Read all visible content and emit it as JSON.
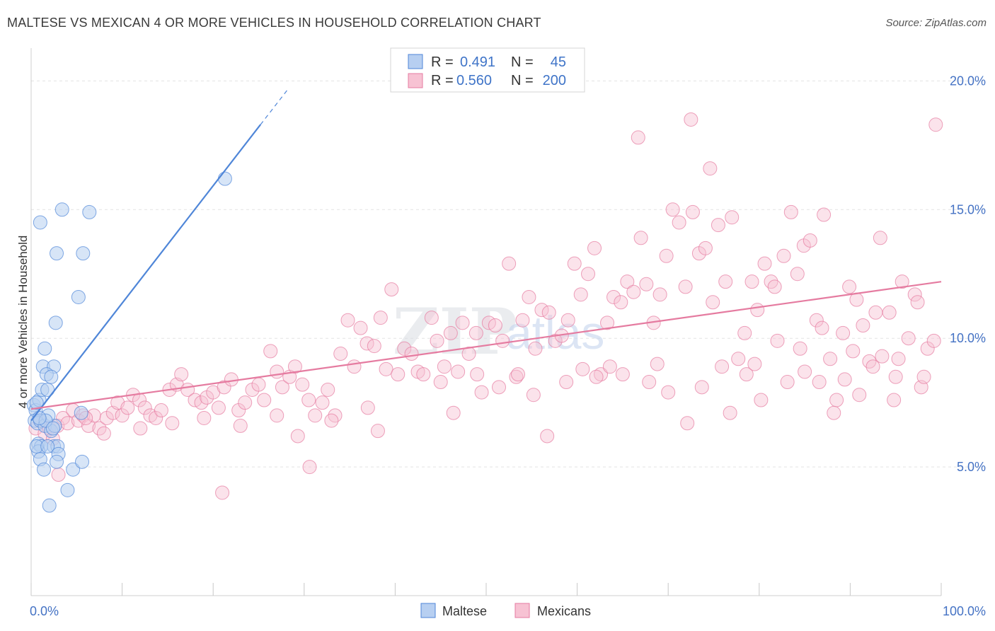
{
  "header": {
    "title": "MALTESE VS MEXICAN 4 OR MORE VEHICLES IN HOUSEHOLD CORRELATION CHART",
    "source": "Source: ZipAtlas.com"
  },
  "watermark": {
    "zip": "ZIP",
    "atlas": "atlas"
  },
  "legend": {
    "r_label": "R =",
    "n_label": "N =",
    "items": [
      {
        "r": "0.491",
        "n": "45",
        "color": "#4f86d8"
      },
      {
        "r": "0.560",
        "n": "200",
        "color": "#e57ba0"
      }
    ]
  },
  "chart_data": {
    "type": "scatter",
    "title": "MALTESE VS MEXICAN 4 OR MORE VEHICLES IN HOUSEHOLD CORRELATION CHART",
    "xlabel": "",
    "ylabel": "4 or more Vehicles in Household",
    "xlim": [
      0,
      100
    ],
    "ylim": [
      0,
      21
    ],
    "x_tick_labels": [
      "0.0%",
      "100.0%"
    ],
    "y_ticks": [
      5,
      10,
      15,
      20
    ],
    "y_tick_labels": [
      "5.0%",
      "10.0%",
      "15.0%",
      "20.0%"
    ],
    "grid": true,
    "legend_position": "top-center",
    "series": [
      {
        "name": "Maltese",
        "color": "#4f86d8",
        "trend": {
          "x0": 0,
          "y0": 6.8,
          "x1": 25.2,
          "y1": 18.3,
          "dash_to_x": 28.3
        },
        "points": [
          [
            0.3,
            7.4
          ],
          [
            0.5,
            7.2
          ],
          [
            0.4,
            6.8
          ],
          [
            0.7,
            6.7
          ],
          [
            0.9,
            7.6
          ],
          [
            0.6,
            7.5
          ],
          [
            1.2,
            8.0
          ],
          [
            1.8,
            8.0
          ],
          [
            1.0,
            6.8
          ],
          [
            1.5,
            6.6
          ],
          [
            2.2,
            6.4
          ],
          [
            2.6,
            6.6
          ],
          [
            1.9,
            7.0
          ],
          [
            0.8,
            5.9
          ],
          [
            1.1,
            5.8
          ],
          [
            2.5,
            5.8
          ],
          [
            2.9,
            5.8
          ],
          [
            3.0,
            5.5
          ],
          [
            0.8,
            5.6
          ],
          [
            1.0,
            5.3
          ],
          [
            1.4,
            4.9
          ],
          [
            2.8,
            5.2
          ],
          [
            4.6,
            4.9
          ],
          [
            5.6,
            5.2
          ],
          [
            4.0,
            4.1
          ],
          [
            2.0,
            3.5
          ],
          [
            1.3,
            8.9
          ],
          [
            2.5,
            8.9
          ],
          [
            1.7,
            8.6
          ],
          [
            2.2,
            8.5
          ],
          [
            1.5,
            9.6
          ],
          [
            2.7,
            10.6
          ],
          [
            5.2,
            11.6
          ],
          [
            2.8,
            13.3
          ],
          [
            5.7,
            13.3
          ],
          [
            1.0,
            14.5
          ],
          [
            3.4,
            15.0
          ],
          [
            6.4,
            14.9
          ],
          [
            21.3,
            16.2
          ],
          [
            5.5,
            7.1
          ],
          [
            0.6,
            5.8
          ],
          [
            1.6,
            6.8
          ],
          [
            2.4,
            6.5
          ],
          [
            0.9,
            6.9
          ],
          [
            1.8,
            5.8
          ]
        ]
      },
      {
        "name": "Mexicans",
        "color": "#e57ba0",
        "trend": {
          "x0": 0,
          "y0": 7.25,
          "x1": 100,
          "y1": 12.2
        },
        "points": [
          [
            0.5,
            6.5
          ],
          [
            1.0,
            6.8
          ],
          [
            1.5,
            6.3
          ],
          [
            2.0,
            6.5
          ],
          [
            2.4,
            6.1
          ],
          [
            2.9,
            6.6
          ],
          [
            3.5,
            6.9
          ],
          [
            4.0,
            6.7
          ],
          [
            4.6,
            7.2
          ],
          [
            5.2,
            6.8
          ],
          [
            5.7,
            7.0
          ],
          [
            6.3,
            6.6
          ],
          [
            6.9,
            7.0
          ],
          [
            7.5,
            6.5
          ],
          [
            8.3,
            6.9
          ],
          [
            9.0,
            7.1
          ],
          [
            9.5,
            7.5
          ],
          [
            10.0,
            7.0
          ],
          [
            10.6,
            7.3
          ],
          [
            11.2,
            7.8
          ],
          [
            11.9,
            7.6
          ],
          [
            12.5,
            7.3
          ],
          [
            13.1,
            7.0
          ],
          [
            13.7,
            6.9
          ],
          [
            14.3,
            7.2
          ],
          [
            15.2,
            8.0
          ],
          [
            16.0,
            8.2
          ],
          [
            16.5,
            8.6
          ],
          [
            17.2,
            8.0
          ],
          [
            18.0,
            7.6
          ],
          [
            18.7,
            7.5
          ],
          [
            19.3,
            7.7
          ],
          [
            20.0,
            7.9
          ],
          [
            20.6,
            7.3
          ],
          [
            21.2,
            8.1
          ],
          [
            22.0,
            8.4
          ],
          [
            22.8,
            7.2
          ],
          [
            23.5,
            7.5
          ],
          [
            24.3,
            8.0
          ],
          [
            25.0,
            8.2
          ],
          [
            25.6,
            7.6
          ],
          [
            26.3,
            9.5
          ],
          [
            27.0,
            8.7
          ],
          [
            27.6,
            8.1
          ],
          [
            28.4,
            8.5
          ],
          [
            29.0,
            8.9
          ],
          [
            29.8,
            8.2
          ],
          [
            30.5,
            7.6
          ],
          [
            31.2,
            7.0
          ],
          [
            32.0,
            7.5
          ],
          [
            32.6,
            8.0
          ],
          [
            33.4,
            7.0
          ],
          [
            34.0,
            9.4
          ],
          [
            34.8,
            10.7
          ],
          [
            35.5,
            8.9
          ],
          [
            36.2,
            10.4
          ],
          [
            36.9,
            9.8
          ],
          [
            37.7,
            9.7
          ],
          [
            38.4,
            10.8
          ],
          [
            39.0,
            8.8
          ],
          [
            39.6,
            11.9
          ],
          [
            40.3,
            8.6
          ],
          [
            41.0,
            9.6
          ],
          [
            41.8,
            9.4
          ],
          [
            42.5,
            8.7
          ],
          [
            43.1,
            8.6
          ],
          [
            44.0,
            10.8
          ],
          [
            44.6,
            9.9
          ],
          [
            45.4,
            8.9
          ],
          [
            46.1,
            10.2
          ],
          [
            46.9,
            8.7
          ],
          [
            47.4,
            10.6
          ],
          [
            48.1,
            9.4
          ],
          [
            48.9,
            10.2
          ],
          [
            49.5,
            7.9
          ],
          [
            50.3,
            10.6
          ],
          [
            51.0,
            10.5
          ],
          [
            51.8,
            9.9
          ],
          [
            52.5,
            12.9
          ],
          [
            53.3,
            8.5
          ],
          [
            54.0,
            10.7
          ],
          [
            54.7,
            11.6
          ],
          [
            55.4,
            9.6
          ],
          [
            56.1,
            11.1
          ],
          [
            56.9,
            11.0
          ],
          [
            57.6,
            9.9
          ],
          [
            58.3,
            10.1
          ],
          [
            59.0,
            10.7
          ],
          [
            59.7,
            12.9
          ],
          [
            60.4,
            11.7
          ],
          [
            61.2,
            12.5
          ],
          [
            61.9,
            13.5
          ],
          [
            62.6,
            8.6
          ],
          [
            63.3,
            10.6
          ],
          [
            64.0,
            11.6
          ],
          [
            64.8,
            11.4
          ],
          [
            65.5,
            12.2
          ],
          [
            66.2,
            11.8
          ],
          [
            67.0,
            13.9
          ],
          [
            67.6,
            12.1
          ],
          [
            68.4,
            10.6
          ],
          [
            69.1,
            11.7
          ],
          [
            69.8,
            13.2
          ],
          [
            70.5,
            15.0
          ],
          [
            71.2,
            14.5
          ],
          [
            71.9,
            12.0
          ],
          [
            72.7,
            14.9
          ],
          [
            73.4,
            13.3
          ],
          [
            74.1,
            13.5
          ],
          [
            74.9,
            11.4
          ],
          [
            75.5,
            14.4
          ],
          [
            76.3,
            12.2
          ],
          [
            77.0,
            14.7
          ],
          [
            77.7,
            9.2
          ],
          [
            78.4,
            10.2
          ],
          [
            79.2,
            12.2
          ],
          [
            79.8,
            11.1
          ],
          [
            80.6,
            12.9
          ],
          [
            81.3,
            12.2
          ],
          [
            82.0,
            9.9
          ],
          [
            82.7,
            13.2
          ],
          [
            83.5,
            14.9
          ],
          [
            84.2,
            12.5
          ],
          [
            84.9,
            13.6
          ],
          [
            85.6,
            13.8
          ],
          [
            86.3,
            10.7
          ],
          [
            87.1,
            14.8
          ],
          [
            87.8,
            9.2
          ],
          [
            88.5,
            7.6
          ],
          [
            89.2,
            10.2
          ],
          [
            89.9,
            12.0
          ],
          [
            90.7,
            11.5
          ],
          [
            91.4,
            10.5
          ],
          [
            92.1,
            9.1
          ],
          [
            92.8,
            11.0
          ],
          [
            93.5,
            9.3
          ],
          [
            94.3,
            11.0
          ],
          [
            95.0,
            8.5
          ],
          [
            95.7,
            12.2
          ],
          [
            96.4,
            10.0
          ],
          [
            97.1,
            11.7
          ],
          [
            97.8,
            8.1
          ],
          [
            98.5,
            9.6
          ],
          [
            99.2,
            9.9
          ],
          [
            66.7,
            17.8
          ],
          [
            72.5,
            18.5
          ],
          [
            74.6,
            16.6
          ],
          [
            99.4,
            18.3
          ],
          [
            81.7,
            12.0
          ],
          [
            86.9,
            10.4
          ],
          [
            93.3,
            13.9
          ],
          [
            97.4,
            11.4
          ],
          [
            76.8,
            7.1
          ],
          [
            85.0,
            8.7
          ],
          [
            89.4,
            8.4
          ],
          [
            91.0,
            7.8
          ],
          [
            94.8,
            7.6
          ],
          [
            72.1,
            6.7
          ],
          [
            56.7,
            6.2
          ],
          [
            30.6,
            5.0
          ],
          [
            21.0,
            4.0
          ],
          [
            29.3,
            6.2
          ],
          [
            38.1,
            6.4
          ],
          [
            46.4,
            7.1
          ],
          [
            53.5,
            8.6
          ],
          [
            58.8,
            8.3
          ],
          [
            62.1,
            8.5
          ],
          [
            65.0,
            8.6
          ],
          [
            67.9,
            8.3
          ],
          [
            70.0,
            7.9
          ],
          [
            73.7,
            8.1
          ],
          [
            78.6,
            8.6
          ],
          [
            80.2,
            7.6
          ],
          [
            83.1,
            8.3
          ],
          [
            86.6,
            8.3
          ],
          [
            88.2,
            7.1
          ],
          [
            90.3,
            9.5
          ],
          [
            92.5,
            8.9
          ],
          [
            95.3,
            9.2
          ],
          [
            98.1,
            8.5
          ],
          [
            45.0,
            8.3
          ],
          [
            49.0,
            8.6
          ],
          [
            51.4,
            8.1
          ],
          [
            55.2,
            7.8
          ],
          [
            60.6,
            8.8
          ],
          [
            63.6,
            8.9
          ],
          [
            68.8,
            9.0
          ],
          [
            75.9,
            8.9
          ],
          [
            79.5,
            9.0
          ],
          [
            84.5,
            9.6
          ],
          [
            3.0,
            4.7
          ],
          [
            6.0,
            6.9
          ],
          [
            8.0,
            6.3
          ],
          [
            12.0,
            6.5
          ],
          [
            15.5,
            6.7
          ],
          [
            19.0,
            6.9
          ],
          [
            23.0,
            6.6
          ],
          [
            27.0,
            7.0
          ],
          [
            33.0,
            6.8
          ],
          [
            37.0,
            7.3
          ]
        ]
      }
    ]
  },
  "bottom_legend": {
    "items": [
      {
        "label": "Maltese",
        "color": "#4f86d8"
      },
      {
        "label": "Mexicans",
        "color": "#e57ba0"
      }
    ]
  }
}
